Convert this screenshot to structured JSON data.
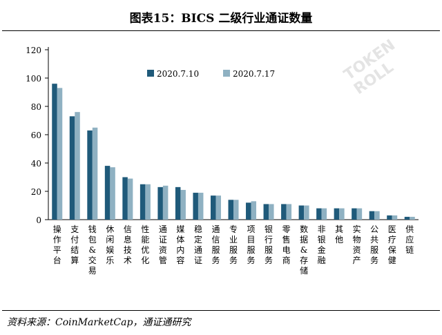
{
  "title": "图表15：BICS 二级行业通证数量",
  "source": "资料来源：CoinMarketCap，通证通研究",
  "watermark": "TOKEN ROLL",
  "colors": {
    "series1": "#1f5a7a",
    "series2": "#8fb1c2"
  },
  "chart_data": {
    "type": "bar",
    "categories": [
      "操作平台",
      "支付结算",
      "钱包&交易",
      "休闲娱乐",
      "信息技术",
      "性能优化",
      "通证资管",
      "媒体内容",
      "稳定通证",
      "通信服务",
      "专业服务",
      "项目服务",
      "银行服务",
      "零售电商",
      "数据&存储",
      "非银金融",
      "其他",
      "实物资产",
      "公共服务",
      "医疗保健",
      "供应链"
    ],
    "series": [
      {
        "name": "2020.7.10",
        "values": [
          96,
          73,
          63,
          38,
          30,
          25,
          23,
          23,
          19,
          17,
          14,
          12,
          11,
          11,
          10,
          8,
          8,
          8,
          6,
          3,
          2
        ]
      },
      {
        "name": "2020.7.17",
        "values": [
          93,
          76,
          65,
          37,
          29,
          25,
          24,
          21,
          19,
          17,
          14,
          13,
          11,
          11,
          10,
          8,
          8,
          8,
          6,
          3,
          2
        ]
      }
    ],
    "ylim": [
      0,
      120
    ],
    "yticks": [
      0,
      20,
      40,
      60,
      80,
      100,
      120
    ],
    "legend_position": "top-left",
    "grid": false
  }
}
